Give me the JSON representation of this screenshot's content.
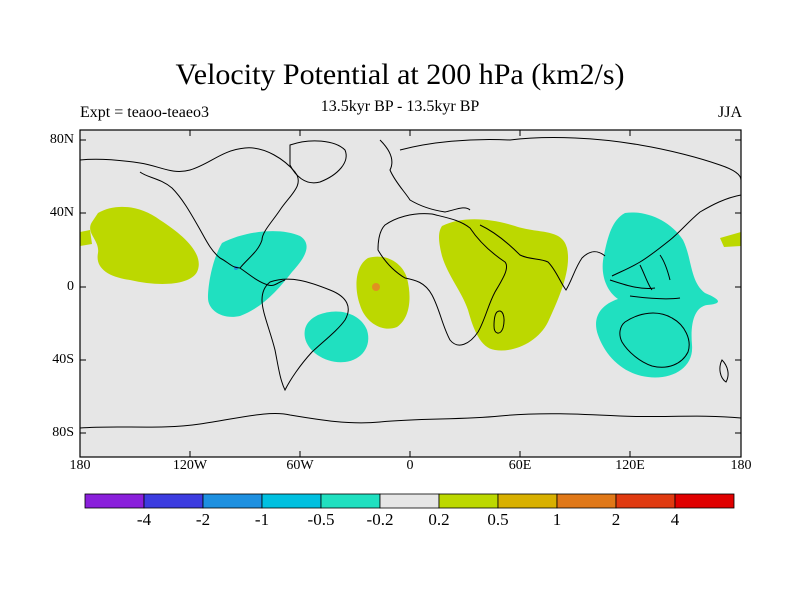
{
  "title": "Velocity Potential at 200 hPa (km2/s)",
  "subtitle": "13.5kyr BP - 13.5kyr BP",
  "left_label": "Expt = teaoo-teaeo3",
  "right_label": "JJA",
  "lat_labels": [
    "80N",
    "40N",
    "0",
    "40S",
    "80S"
  ],
  "lon_labels": [
    "180",
    "120W",
    "60W",
    "0",
    "60E",
    "120E",
    "180"
  ],
  "colorbar": {
    "colors": [
      "#8a1fdb",
      "#3c3ce0",
      "#1e90e0",
      "#00c0e0",
      "#20e0c0",
      "#e6e6e6",
      "#bcd800",
      "#d8b000",
      "#e07818",
      "#e03a10",
      "#e00000"
    ],
    "labels": [
      "-4",
      "-2",
      "-1",
      "-0.5",
      "-0.2",
      "0.2",
      "0.5",
      "1",
      "2",
      "4"
    ]
  },
  "colors": {
    "ocean_land_bg": "#e6e6e6",
    "positive_fill": "#bcd800",
    "negative_fill": "#20e0c0",
    "small_positive": "#e09020",
    "small_negative": "#1e90e0"
  }
}
